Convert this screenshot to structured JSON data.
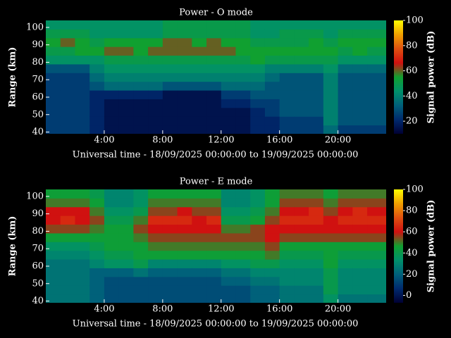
{
  "chart_data": [
    {
      "type": "heatmap",
      "title": "Power - O mode",
      "xlabel": "Universal time - 18/09/2025 00:00:00 to 19/09/2025 00:00:00",
      "ylabel": "Range (km)",
      "colorbar_label": "Signal power (dB)",
      "x": [
        0.5,
        1.5,
        2.5,
        3.5,
        4.5,
        5.5,
        6.5,
        7.5,
        8.5,
        9.5,
        10.5,
        11.5,
        12.5,
        13.5,
        14.5,
        15.5,
        16.5,
        17.5,
        18.5,
        19.5,
        20.5,
        21.5,
        22.5,
        23.5
      ],
      "y": [
        41.5,
        46.5,
        51.5,
        56.5,
        61.5,
        66.5,
        71.5,
        76.5,
        81.5,
        86.5,
        91.5,
        96.5,
        101.5
      ],
      "values": [
        [
          25,
          25,
          25,
          25,
          25,
          25,
          25,
          30,
          45,
          50,
          55,
          50,
          45
        ],
        [
          25,
          25,
          25,
          25,
          25,
          25,
          25,
          30,
          45,
          50,
          60,
          50,
          45
        ],
        [
          25,
          25,
          25,
          25,
          25,
          25,
          25,
          30,
          45,
          55,
          55,
          50,
          45
        ],
        [
          20,
          20,
          20,
          20,
          20,
          30,
          35,
          40,
          45,
          55,
          50,
          45,
          45
        ],
        [
          15,
          15,
          15,
          15,
          20,
          35,
          40,
          45,
          50,
          60,
          55,
          45,
          45
        ],
        [
          15,
          15,
          15,
          15,
          20,
          35,
          40,
          45,
          50,
          60,
          55,
          45,
          45
        ],
        [
          15,
          15,
          15,
          15,
          20,
          35,
          40,
          45,
          50,
          55,
          55,
          45,
          45
        ],
        [
          15,
          15,
          15,
          15,
          20,
          35,
          40,
          45,
          50,
          60,
          55,
          45,
          45
        ],
        [
          15,
          15,
          15,
          15,
          15,
          30,
          40,
          45,
          50,
          60,
          60,
          50,
          50
        ],
        [
          15,
          15,
          15,
          15,
          15,
          30,
          40,
          45,
          50,
          60,
          60,
          50,
          50
        ],
        [
          15,
          15,
          15,
          15,
          15,
          30,
          40,
          45,
          50,
          60,
          55,
          50,
          50
        ],
        [
          15,
          15,
          15,
          15,
          15,
          30,
          40,
          45,
          50,
          60,
          60,
          50,
          50
        ],
        [
          15,
          15,
          15,
          20,
          25,
          35,
          40,
          45,
          50,
          60,
          55,
          50,
          50
        ],
        [
          15,
          15,
          15,
          20,
          25,
          35,
          40,
          45,
          50,
          55,
          55,
          50,
          50
        ],
        [
          20,
          20,
          20,
          25,
          30,
          35,
          40,
          45,
          55,
          55,
          50,
          45,
          45
        ],
        [
          20,
          20,
          25,
          25,
          30,
          30,
          35,
          40,
          50,
          55,
          50,
          45,
          45
        ],
        [
          25,
          25,
          30,
          30,
          30,
          30,
          30,
          40,
          50,
          55,
          50,
          50,
          45
        ],
        [
          25,
          25,
          30,
          30,
          30,
          30,
          30,
          40,
          50,
          55,
          50,
          50,
          45
        ],
        [
          25,
          25,
          30,
          30,
          30,
          30,
          30,
          40,
          50,
          55,
          55,
          50,
          45
        ],
        [
          35,
          40,
          40,
          40,
          40,
          40,
          40,
          45,
          50,
          55,
          50,
          45,
          45
        ],
        [
          25,
          30,
          30,
          30,
          30,
          30,
          30,
          35,
          45,
          50,
          55,
          50,
          45
        ],
        [
          25,
          30,
          30,
          30,
          30,
          30,
          30,
          35,
          45,
          55,
          55,
          50,
          45
        ],
        [
          25,
          30,
          30,
          30,
          30,
          30,
          30,
          35,
          45,
          50,
          55,
          50,
          45
        ],
        [
          25,
          30,
          30,
          30,
          30,
          30,
          30,
          35,
          45,
          50,
          55,
          50,
          45
        ]
      ],
      "xlim": [
        0,
        23.3
      ],
      "ylim": [
        39,
        104
      ],
      "xticks": [
        {
          "value": 4,
          "label": "4:00"
        },
        {
          "value": 8,
          "label": "8:00"
        },
        {
          "value": 12,
          "label": "12:00"
        },
        {
          "value": 16,
          "label": "16:00"
        },
        {
          "value": 20,
          "label": "20:00"
        }
      ],
      "yticks": [
        40,
        50,
        60,
        70,
        80,
        90,
        100
      ],
      "clim": [
        10,
        100
      ],
      "cticks": [
        20,
        40,
        60,
        80,
        100
      ],
      "colorscale": [
        "#000033",
        "#002a6e",
        "#00607a",
        "#00906a",
        "#10a030",
        "#d01010",
        "#e05010",
        "#f0a000",
        "#ffff00"
      ]
    },
    {
      "type": "heatmap",
      "title": "Power - E mode",
      "xlabel": "Universal time - 18/09/2025 00:00:00 to 19/09/2025 00:00:00",
      "ylabel": "Range (km)",
      "colorbar_label": "Signal power (dB)",
      "x": [
        0.5,
        1.5,
        2.5,
        3.5,
        4.5,
        5.5,
        6.5,
        7.5,
        8.5,
        9.5,
        10.5,
        11.5,
        12.5,
        13.5,
        14.5,
        15.5,
        16.5,
        17.5,
        18.5,
        19.5,
        20.5,
        21.5,
        22.5,
        23.5
      ],
      "y": [
        41.5,
        46.5,
        51.5,
        56.5,
        61.5,
        66.5,
        71.5,
        76.5,
        81.5,
        86.5,
        91.5,
        96.5,
        101.5
      ],
      "values": [
        [
          25,
          25,
          25,
          25,
          25,
          30,
          35,
          45,
          55,
          60,
          60,
          50,
          45
        ],
        [
          25,
          25,
          25,
          25,
          25,
          30,
          35,
          45,
          55,
          65,
          60,
          50,
          45
        ],
        [
          25,
          25,
          25,
          25,
          25,
          30,
          35,
          45,
          55,
          60,
          60,
          50,
          45
        ],
        [
          20,
          20,
          20,
          20,
          30,
          35,
          40,
          45,
          50,
          55,
          50,
          45,
          40
        ],
        [
          15,
          15,
          15,
          20,
          35,
          40,
          45,
          45,
          45,
          40,
          35,
          30,
          30
        ],
        [
          15,
          15,
          15,
          20,
          35,
          40,
          45,
          45,
          45,
          40,
          35,
          30,
          30
        ],
        [
          15,
          15,
          15,
          25,
          40,
          45,
          45,
          50,
          55,
          50,
          40,
          35,
          35
        ],
        [
          15,
          15,
          15,
          20,
          30,
          45,
          50,
          55,
          60,
          65,
          55,
          50,
          45
        ],
        [
          15,
          15,
          15,
          20,
          30,
          45,
          50,
          55,
          60,
          65,
          55,
          50,
          45
        ],
        [
          15,
          15,
          15,
          20,
          30,
          45,
          50,
          55,
          60,
          65,
          60,
          50,
          45
        ],
        [
          15,
          15,
          15,
          20,
          30,
          45,
          50,
          55,
          60,
          60,
          55,
          50,
          45
        ],
        [
          15,
          15,
          15,
          20,
          30,
          45,
          50,
          55,
          60,
          65,
          55,
          50,
          45
        ],
        [
          15,
          15,
          20,
          25,
          35,
          45,
          50,
          55,
          50,
          40,
          35,
          30,
          30
        ],
        [
          15,
          15,
          20,
          25,
          35,
          45,
          50,
          55,
          50,
          40,
          35,
          30,
          30
        ],
        [
          20,
          20,
          25,
          30,
          40,
          45,
          50,
          55,
          55,
          45,
          40,
          35,
          35
        ],
        [
          20,
          20,
          25,
          30,
          40,
          50,
          55,
          60,
          60,
          55,
          50,
          45,
          45
        ],
        [
          25,
          25,
          30,
          30,
          35,
          40,
          45,
          55,
          60,
          65,
          60,
          55,
          50
        ],
        [
          25,
          25,
          30,
          30,
          35,
          40,
          45,
          55,
          60,
          65,
          60,
          55,
          50
        ],
        [
          25,
          25,
          30,
          30,
          35,
          40,
          45,
          55,
          60,
          65,
          65,
          55,
          50
        ],
        [
          35,
          40,
          40,
          40,
          45,
          45,
          45,
          55,
          60,
          60,
          55,
          50,
          45
        ],
        [
          25,
          30,
          30,
          30,
          35,
          40,
          45,
          55,
          60,
          65,
          60,
          55,
          50
        ],
        [
          25,
          30,
          30,
          30,
          35,
          40,
          45,
          55,
          60,
          65,
          65,
          55,
          50
        ],
        [
          25,
          30,
          30,
          30,
          35,
          40,
          45,
          55,
          60,
          65,
          60,
          55,
          50
        ],
        [
          25,
          30,
          30,
          30,
          35,
          40,
          45,
          55,
          60,
          65,
          60,
          55,
          50
        ]
      ],
      "xlim": [
        0,
        23.3
      ],
      "ylim": [
        39,
        104
      ],
      "xticks": [
        {
          "value": 4,
          "label": "4:00"
        },
        {
          "value": 8,
          "label": "8:00"
        },
        {
          "value": 12,
          "label": "12:00"
        },
        {
          "value": 16,
          "label": "16:00"
        },
        {
          "value": 20,
          "label": "20:00"
        }
      ],
      "yticks": [
        40,
        50,
        60,
        70,
        80,
        90,
        100
      ],
      "clim": [
        -7,
        100
      ],
      "cticks": [
        0,
        20,
        40,
        60,
        80,
        100
      ],
      "colorscale": [
        "#000033",
        "#002a6e",
        "#00607a",
        "#00906a",
        "#10a030",
        "#d01010",
        "#e05010",
        "#f0a000",
        "#ffff00"
      ]
    }
  ]
}
